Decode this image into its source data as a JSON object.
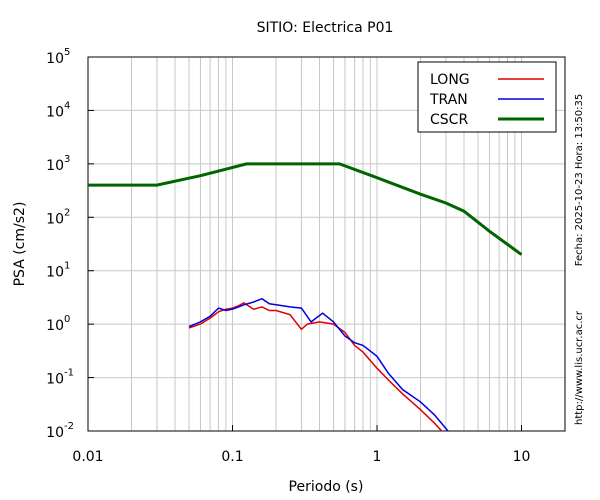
{
  "chart_data": {
    "type": "line",
    "title": "SITIO: Electrica P01",
    "xlabel": "Periodo (s)",
    "ylabel": "PSA (cm/s2)",
    "annotations": [
      "Fecha: 2025-10-23 Hora: 13:50:35",
      "http://www.lis.ucr.ac.cr"
    ],
    "xscale": "log",
    "yscale": "log",
    "grid": true,
    "legend": "upper right",
    "xlim": [
      0.01,
      20
    ],
    "ylim": [
      0.01,
      100000
    ],
    "xticks": [
      0.01,
      0.1,
      1,
      10
    ],
    "yticks": [
      {
        "value": 0.01,
        "label": "10",
        "exp": "-2"
      },
      {
        "value": 0.1,
        "label": "10",
        "exp": "-1"
      },
      {
        "value": 1,
        "label": "10",
        "exp": "0"
      },
      {
        "value": 10,
        "label": "10",
        "exp": "1"
      },
      {
        "value": 100,
        "label": "10",
        "exp": "2"
      },
      {
        "value": 1000,
        "label": "10",
        "exp": "3"
      },
      {
        "value": 10000,
        "label": "10",
        "exp": "4"
      },
      {
        "value": 100000,
        "label": "10",
        "exp": "5"
      }
    ],
    "series": [
      {
        "name": "LONG",
        "color": "#e00000",
        "width": 1.5,
        "x": [
          0.05,
          0.06,
          0.07,
          0.08,
          0.09,
          0.1,
          0.11,
          0.12,
          0.14,
          0.16,
          0.18,
          0.2,
          0.25,
          0.3,
          0.33,
          0.4,
          0.5,
          0.6,
          0.7,
          0.8,
          1,
          1.2,
          1.5,
          2,
          2.5,
          2.8
        ],
        "values": [
          0.85,
          1.0,
          1.3,
          1.7,
          1.9,
          2.0,
          2.2,
          2.5,
          1.9,
          2.1,
          1.8,
          1.8,
          1.5,
          0.8,
          1.0,
          1.1,
          1.0,
          0.7,
          0.4,
          0.3,
          0.15,
          0.09,
          0.05,
          0.025,
          0.014,
          0.01
        ]
      },
      {
        "name": "TRAN",
        "color": "#0000e0",
        "width": 1.5,
        "x": [
          0.05,
          0.06,
          0.07,
          0.08,
          0.09,
          0.1,
          0.11,
          0.12,
          0.14,
          0.16,
          0.18,
          0.2,
          0.25,
          0.3,
          0.35,
          0.42,
          0.5,
          0.6,
          0.7,
          0.8,
          1,
          1.2,
          1.5,
          2,
          2.5,
          3.1
        ],
        "values": [
          0.9,
          1.1,
          1.4,
          2.0,
          1.8,
          1.9,
          2.1,
          2.3,
          2.6,
          3.0,
          2.4,
          2.3,
          2.1,
          2.0,
          1.1,
          1.6,
          1.1,
          0.6,
          0.45,
          0.4,
          0.25,
          0.12,
          0.06,
          0.035,
          0.02,
          0.01
        ]
      },
      {
        "name": "CSCR",
        "color": "#006400",
        "width": 3,
        "x": [
          0.01,
          0.03,
          0.06,
          0.125,
          0.55,
          1,
          2,
          3,
          4,
          6,
          10
        ],
        "values": [
          400,
          400,
          600,
          1000,
          1000,
          550,
          270,
          185,
          130,
          55,
          20
        ]
      }
    ]
  }
}
